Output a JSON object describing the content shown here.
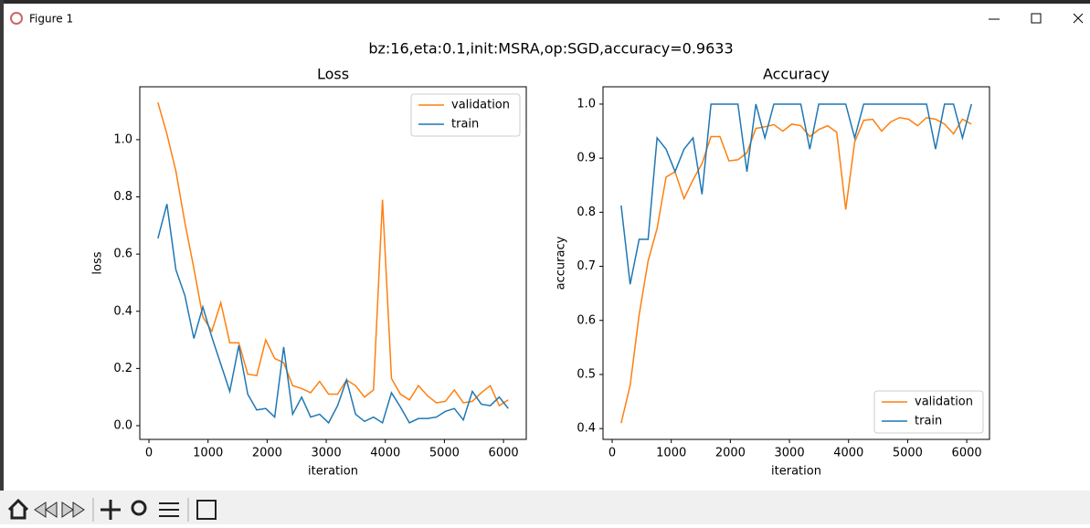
{
  "window": {
    "title": "Figure 1"
  },
  "suptitle": "bz:16,eta:0.1,init:MSRA,op:SGD,accuracy=0.9633",
  "chart_data": [
    {
      "type": "line",
      "title": "Loss",
      "x_label": "iteration",
      "y_label": "loss",
      "x": [
        152,
        304,
        456,
        608,
        760,
        912,
        1064,
        1216,
        1368,
        1520,
        1672,
        1824,
        1976,
        2128,
        2280,
        2432,
        2584,
        2736,
        2888,
        3040,
        3192,
        3344,
        3496,
        3648,
        3800,
        3952,
        4104,
        4256,
        4408,
        4560,
        4712,
        4864,
        5016,
        5168,
        5320,
        5472,
        5624,
        5776,
        5928,
        6080
      ],
      "series": [
        {
          "name": "validation",
          "color": "#ff7f0e",
          "values": [
            1.13,
            1.02,
            0.89,
            0.71,
            0.55,
            0.38,
            0.33,
            0.43,
            0.29,
            0.29,
            0.18,
            0.175,
            0.3,
            0.235,
            0.22,
            0.14,
            0.13,
            0.115,
            0.155,
            0.11,
            0.11,
            0.16,
            0.14,
            0.1,
            0.125,
            0.79,
            0.165,
            0.11,
            0.09,
            0.14,
            0.105,
            0.08,
            0.085,
            0.125,
            0.08,
            0.085,
            0.115,
            0.14,
            0.07,
            0.09
          ]
        },
        {
          "name": "train",
          "color": "#1f77b4",
          "values": [
            0.655,
            0.775,
            0.545,
            0.455,
            0.305,
            0.415,
            0.31,
            0.215,
            0.12,
            0.28,
            0.11,
            0.055,
            0.06,
            0.03,
            0.275,
            0.04,
            0.1,
            0.03,
            0.04,
            0.01,
            0.07,
            0.16,
            0.04,
            0.015,
            0.03,
            0.01,
            0.115,
            0.065,
            0.01,
            0.025,
            0.025,
            0.03,
            0.05,
            0.06,
            0.02,
            0.12,
            0.075,
            0.07,
            0.1,
            0.06
          ]
        }
      ],
      "xlim": [
        -155,
        6385
      ],
      "ylim": [
        -0.048,
        1.185
      ],
      "xticks": [
        0,
        1000,
        2000,
        3000,
        4000,
        5000,
        6000
      ],
      "yticks": [
        {
          "value": 0,
          "label": "0.0"
        },
        {
          "value": 0.2,
          "label": "0.2"
        },
        {
          "value": 0.4,
          "label": "0.4"
        },
        {
          "value": 0.6,
          "label": "0.6"
        },
        {
          "value": 0.8,
          "label": "0.8"
        },
        {
          "value": 1,
          "label": "1.0"
        }
      ],
      "legend": "upper right"
    },
    {
      "type": "line",
      "title": "Accuracy",
      "x_label": "iteration",
      "y_label": "accuracy",
      "x": [
        152,
        304,
        456,
        608,
        760,
        912,
        1064,
        1216,
        1368,
        1520,
        1672,
        1824,
        1976,
        2128,
        2280,
        2432,
        2584,
        2736,
        2888,
        3040,
        3192,
        3344,
        3496,
        3648,
        3800,
        3952,
        4104,
        4256,
        4408,
        4560,
        4712,
        4864,
        5016,
        5168,
        5320,
        5472,
        5624,
        5776,
        5928,
        6080
      ],
      "series": [
        {
          "name": "validation",
          "color": "#ff7f0e",
          "values": [
            0.41,
            0.48,
            0.61,
            0.71,
            0.77,
            0.865,
            0.875,
            0.825,
            0.86,
            0.89,
            0.94,
            0.94,
            0.895,
            0.897,
            0.91,
            0.955,
            0.958,
            0.962,
            0.95,
            0.963,
            0.96,
            0.94,
            0.953,
            0.96,
            0.948,
            0.805,
            0.93,
            0.97,
            0.972,
            0.95,
            0.967,
            0.975,
            0.972,
            0.96,
            0.975,
            0.972,
            0.963,
            0.945,
            0.972,
            0.963
          ]
        },
        {
          "name": "train",
          "color": "#1f77b4",
          "values": [
            0.8125,
            0.6667,
            0.75,
            0.75,
            0.9375,
            0.9167,
            0.875,
            0.9167,
            0.9375,
            0.8333,
            1,
            1,
            1,
            1,
            0.875,
            1,
            0.9375,
            1,
            1,
            1,
            1,
            0.9167,
            1,
            1,
            1,
            1,
            0.9375,
            1,
            1,
            1,
            1,
            1,
            1,
            1,
            1,
            0.9167,
            1,
            1,
            0.9375,
            1
          ]
        }
      ],
      "xlim": [
        -155,
        6385
      ],
      "ylim": [
        0.38,
        1.032
      ],
      "xticks": [
        0,
        1000,
        2000,
        3000,
        4000,
        5000,
        6000
      ],
      "yticks": [
        {
          "value": 0.4,
          "label": "0.4"
        },
        {
          "value": 0.5,
          "label": "0.5"
        },
        {
          "value": 0.6,
          "label": "0.6"
        },
        {
          "value": 0.7,
          "label": "0.7"
        },
        {
          "value": 0.8,
          "label": "0.8"
        },
        {
          "value": 0.9,
          "label": "0.9"
        },
        {
          "value": 1,
          "label": "1.0"
        }
      ],
      "legend": "lower right"
    }
  ]
}
